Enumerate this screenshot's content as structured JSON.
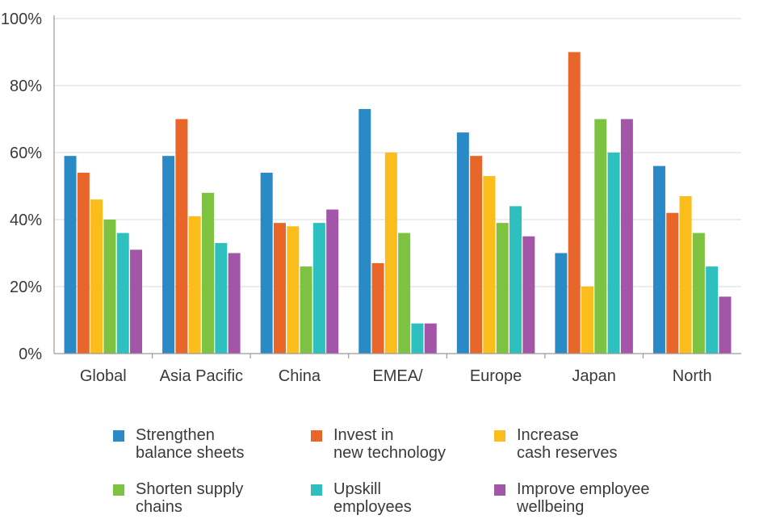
{
  "chart_data": {
    "type": "bar",
    "title": "",
    "xlabel": "",
    "ylabel": "",
    "ylim": [
      0,
      100
    ],
    "yticks": [
      "0%",
      "20%",
      "40%",
      "60%",
      "80%",
      "100%"
    ],
    "grid": true,
    "legend_position": "bottom",
    "categories": [
      "Global",
      "Asia Pacific\nex China, ex Japan",
      "China",
      "EMEA/\nLatin America",
      "Europe",
      "Japan",
      "North\nAmerica"
    ],
    "series": [
      {
        "name": "Strengthen\nbalance sheets",
        "color": "#2a8ac6",
        "values": [
          59,
          59,
          54,
          73,
          66,
          30,
          56
        ]
      },
      {
        "name": "Invest in\nnew technology",
        "color": "#e8662a",
        "values": [
          54,
          70,
          39,
          27,
          59,
          90,
          42
        ]
      },
      {
        "name": "Increase\ncash reserves",
        "color": "#fbbd1c",
        "values": [
          46,
          41,
          38,
          60,
          53,
          20,
          47
        ]
      },
      {
        "name": "Shorten supply\nchains",
        "color": "#7ec242",
        "values": [
          40,
          48,
          26,
          36,
          39,
          70,
          36
        ]
      },
      {
        "name": "Upskill\nemployees",
        "color": "#2ebfbf",
        "values": [
          36,
          33,
          39,
          9,
          44,
          60,
          26
        ]
      },
      {
        "name": "Improve employee\nwellbeing",
        "color": "#a356a8",
        "values": [
          31,
          30,
          43,
          9,
          35,
          70,
          17
        ]
      }
    ]
  }
}
